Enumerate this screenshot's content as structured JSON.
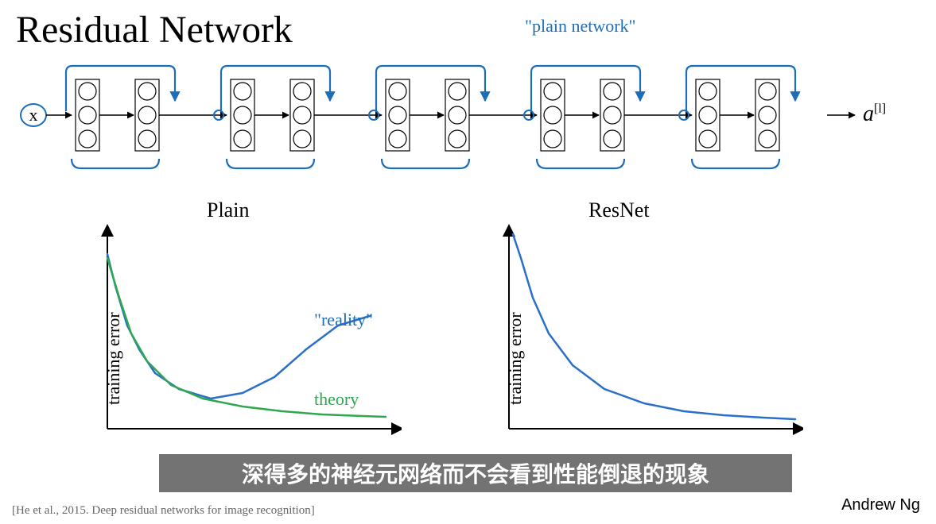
{
  "title": "Residual Network",
  "handwritten_label": "\"plain network\"",
  "output_symbol": "a",
  "output_superscript": "[l]",
  "colors": {
    "handwriting_blue": "#1e6db8",
    "theory_green": "#2ea84f",
    "chart_blue": "#2a6fc9",
    "axis_black": "#000000",
    "background": "#ffffff"
  },
  "network": {
    "type": "flowchart",
    "input_label": "x",
    "num_blocks": 5,
    "layers_per_block": 2,
    "neurons_per_layer": 3,
    "layer_box_stroke": "#000000",
    "neuron_stroke": "#000000",
    "arrow_stroke": "#000000",
    "skip_stroke": "#1e6db8",
    "bracket_stroke": "#1e6db8",
    "input_circle_stroke": "#1e6db8",
    "skip_stroke_width": 2.2,
    "arrow_stroke_width": 1.5,
    "layer_box_width": 30,
    "layer_box_height": 90,
    "neuron_radius": 11
  },
  "charts": {
    "plain": {
      "title": "Plain",
      "ylabel": "training error",
      "type": "line",
      "axis_color": "#000000",
      "axis_width": 2,
      "series": [
        {
          "name": "reality",
          "color": "#2a6fc9",
          "width": 2.5,
          "points": [
            [
              30,
              40
            ],
            [
              40,
              80
            ],
            [
              55,
              130
            ],
            [
              70,
              160
            ],
            [
              90,
              190
            ],
            [
              120,
              210
            ],
            [
              160,
              222
            ],
            [
              200,
              215
            ],
            [
              240,
              195
            ],
            [
              280,
              160
            ],
            [
              320,
              130
            ],
            [
              360,
              118
            ]
          ],
          "label": "\"reality\""
        },
        {
          "name": "theory",
          "color": "#2ea84f",
          "width": 2.5,
          "points": [
            [
              30,
              45
            ],
            [
              45,
              95
            ],
            [
              60,
              140
            ],
            [
              80,
              175
            ],
            [
              110,
              205
            ],
            [
              150,
              222
            ],
            [
              200,
              232
            ],
            [
              250,
              238
            ],
            [
              300,
              242
            ],
            [
              350,
              244
            ],
            [
              380,
              245
            ]
          ],
          "label": "theory"
        }
      ]
    },
    "resnet": {
      "title": "ResNet",
      "ylabel": "training error",
      "type": "line",
      "axis_color": "#000000",
      "axis_width": 2,
      "series": [
        {
          "name": "resnet",
          "color": "#2a6fc9",
          "width": 2.5,
          "points": [
            [
              35,
              15
            ],
            [
              45,
              45
            ],
            [
              60,
              95
            ],
            [
              80,
              140
            ],
            [
              110,
              180
            ],
            [
              150,
              210
            ],
            [
              200,
              228
            ],
            [
              250,
              238
            ],
            [
              300,
              243
            ],
            [
              350,
              246
            ],
            [
              390,
              248
            ]
          ]
        }
      ]
    }
  },
  "reality_label": "\"reality\"",
  "theory_label": "theory",
  "citation": "[He et al., 2015. Deep residual networks for image recognition]",
  "author": "Andrew Ng",
  "subtitle": "深得多的神经元网络而不会看到性能倒退的现象"
}
